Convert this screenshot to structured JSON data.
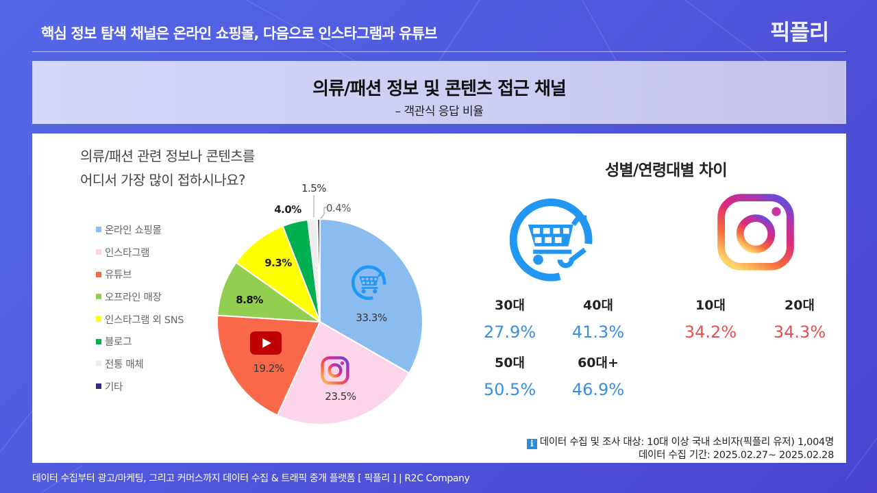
{
  "header": {
    "title": "핵심 정보 탐색 채널은 온라인 쇼핑몰, 다음으로 인스타그램과 유튜브",
    "logo": "픽플리"
  },
  "head_box": {
    "title": "의류/패션 정보 및 콘텐츠 접근 채널",
    "subtitle": "– 객관식 응답 비율"
  },
  "question": {
    "line1": "의류/패션 관련 정보나 콘텐츠를",
    "line2": "어디서 가장 많이 접하시나요?"
  },
  "legend": [
    {
      "label": "온라인 쇼핑몰",
      "color": "#8bbcf0"
    },
    {
      "label": "인스타그램",
      "color": "#fcd5ea"
    },
    {
      "label": "유튜브",
      "color": "#f96849"
    },
    {
      "label": "오프라인 매장",
      "color": "#92cf50"
    },
    {
      "label": "인스타그램 외 SNS",
      "color": "#ffff00"
    },
    {
      "label": "블로그",
      "color": "#00b050"
    },
    {
      "label": "전통 매체",
      "color": "#eeeeee"
    },
    {
      "label": "기타",
      "color": "#2e2e8a"
    }
  ],
  "pie_labels": {
    "online": "33.3%",
    "instagram": "23.5%",
    "youtube": "19.2%",
    "offline": "8.8%",
    "other_sns": "9.3%",
    "blog": "4.0%",
    "traditional": "1.5%",
    "etc": "0.4%"
  },
  "chart_data": {
    "type": "pie",
    "title": "의류/패션 관련 정보나 콘텐츠를 어디서 가장 많이 접하시나요?",
    "categories": [
      "온라인 쇼핑몰",
      "인스타그램",
      "유튜브",
      "오프라인 매장",
      "인스타그램 외 SNS",
      "블로그",
      "전통 매체",
      "기타"
    ],
    "values": [
      33.3,
      23.5,
      19.2,
      8.8,
      9.3,
      4.0,
      1.5,
      0.4
    ],
    "colors": [
      "#8bbcf0",
      "#fcd5ea",
      "#f96849",
      "#92cf50",
      "#ffff00",
      "#00b050",
      "#eeeeee",
      "#2e2e8a"
    ],
    "unit": "%",
    "legend_position": "left"
  },
  "right": {
    "title": "성별/연령대별 차이",
    "shopping": {
      "icon": "shopping-cart-at-icon",
      "color": "#3a8ee0",
      "items": [
        {
          "age": "30대",
          "value": "27.9%"
        },
        {
          "age": "40대",
          "value": "41.3%"
        },
        {
          "age": "50대",
          "value": "50.5%"
        },
        {
          "age": "60대+",
          "value": "46.9%"
        }
      ]
    },
    "instagram": {
      "icon": "instagram-icon",
      "color": "#e8504f",
      "items": [
        {
          "age": "10대",
          "value": "34.2%"
        },
        {
          "age": "20대",
          "value": "34.3%"
        }
      ]
    }
  },
  "note": {
    "line1": "데이터 수집 및 조사 대상: 10대 이상 국내 소비자(픽플리 유저) 1,004명",
    "line2": "데이터 수집 기간: 2025.02.27~ 2025.02.28",
    "info_glyph": "i"
  },
  "footer": {
    "text": "데이터 수집부터 광고/마케팅, 그리고 커머스까지 데이터 수집 & 트래픽 중개 플랫폼 [ 픽플리 ]  |  R2C Company"
  }
}
